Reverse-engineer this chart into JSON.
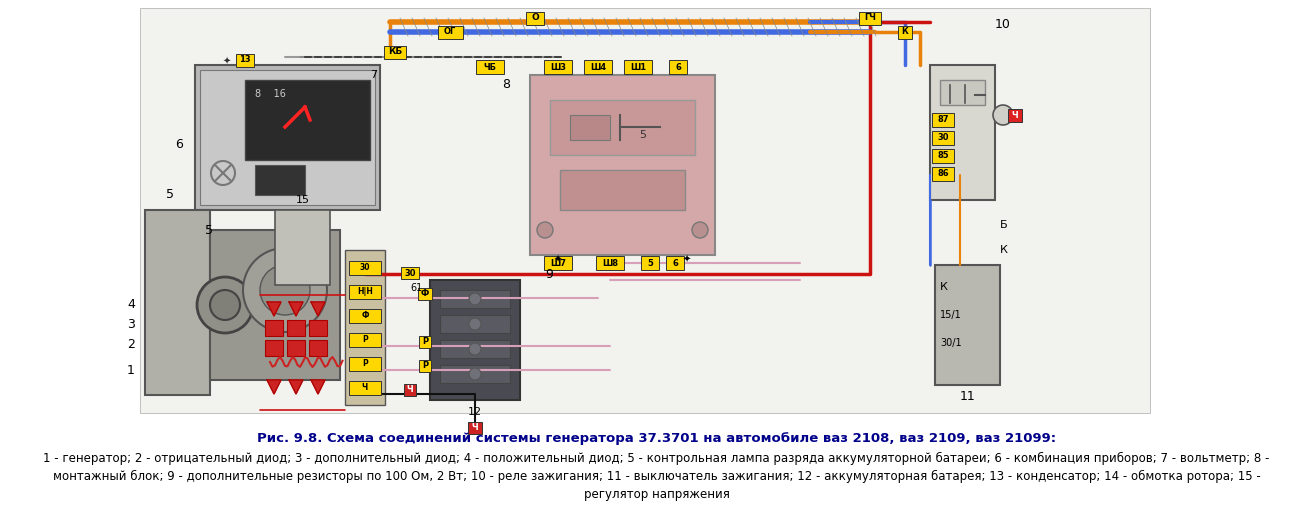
{
  "background_color": "#ffffff",
  "title_line1": "Рис. 9.8. Схема соединений системы генератора 37.3701 на автомобиле ваз 2108, ваз 2109, ваз 21099:",
  "title_line2": "1 - генератор; 2 - отрицательный диод; 3 - дополнительный диод; 4 - положительный диод; 5 - контрольная лампа разряда аккумуляторной батареи; 6 - комбинация приборов; 7 - вольтметр; 8 -",
  "title_line3": "монтажный блок; 9 - дополнительные резисторы по 100 Ом, 2 Вт; 10 - реле зажигания; 11 - выключатель зажигания; 12 - аккумуляторная батарея; 13 - конденсатор; 14 - обмотка ротора; 15 -",
  "title_line4": "регулятор напряжения",
  "title_fontsize": 9.5,
  "caption_fontsize": 8.5,
  "title_color": "#00008B",
  "caption_color": "#000000",
  "fig_width": 13.13,
  "fig_height": 5.31,
  "wire_orange": "#E8820A",
  "wire_blue": "#4169E1",
  "wire_pink": "#D8A0B8",
  "wire_red": "#CC1111",
  "wire_gray": "#888888",
  "wire_black": "#111111",
  "wire_dkgray": "#555555",
  "ylw": "#FFD700",
  "diag_bg": "#e8e8e0",
  "instr_bg": "#c0c0c0",
  "relay_bg": "#d8d8d0",
  "mount_bg": "#d0b8b8",
  "gen_bg": "#909090",
  "bat_bg": "#555560"
}
